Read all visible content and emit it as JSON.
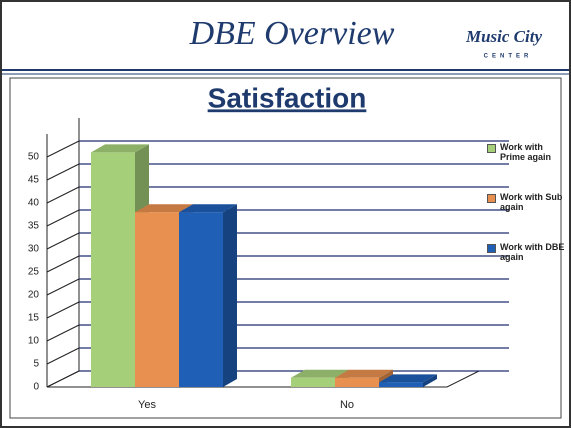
{
  "header": {
    "title": "DBE Overview",
    "logo": "Music City",
    "logo_sub": "CENTER"
  },
  "chart_data": {
    "type": "bar",
    "title": "Satisfaction",
    "categories": [
      "Yes",
      "No"
    ],
    "series": [
      {
        "name": "Work with Prime again",
        "color": "#a6cf7a",
        "values": [
          51,
          2
        ]
      },
      {
        "name": "Work with Sub again",
        "color": "#e8904f",
        "values": [
          38,
          2
        ]
      },
      {
        "name": "Work with DBE again",
        "color": "#1f5fb5",
        "values": [
          38,
          1
        ]
      }
    ],
    "ylim": [
      0,
      55
    ],
    "yticks": [
      0,
      5,
      10,
      15,
      20,
      25,
      30,
      35,
      40,
      45,
      50
    ],
    "grid": true,
    "legend": "right"
  }
}
